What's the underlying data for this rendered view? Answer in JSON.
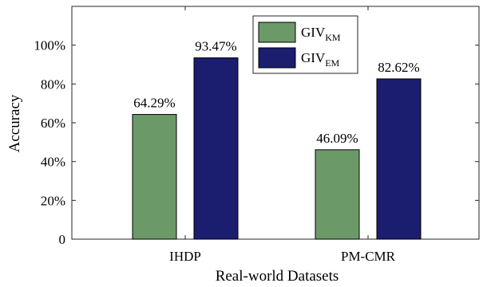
{
  "chart_data": {
    "type": "bar",
    "categories": [
      "IHDP",
      "PM-CMR"
    ],
    "series": [
      {
        "name": "GIV",
        "subscript": "KM",
        "values": [
          64.29,
          46.09
        ],
        "labels": [
          "64.29%",
          "46.09%"
        ]
      },
      {
        "name": "GIV",
        "subscript": "EM",
        "values": [
          93.47,
          82.62
        ],
        "labels": [
          "93.47%",
          "82.62%"
        ]
      }
    ],
    "xlabel": "Real-world Datasets",
    "ylabel": "Accuracy",
    "ylim": [
      0,
      120
    ],
    "yticks": [
      0,
      20,
      40,
      60,
      80,
      100
    ],
    "ytick_labels": [
      "0",
      "20%",
      "40%",
      "60%",
      "80%",
      "100%"
    ],
    "colors": [
      "#6b9a68",
      "#1b1d6e"
    ],
    "legend_position": "top-right",
    "grid": false
  }
}
